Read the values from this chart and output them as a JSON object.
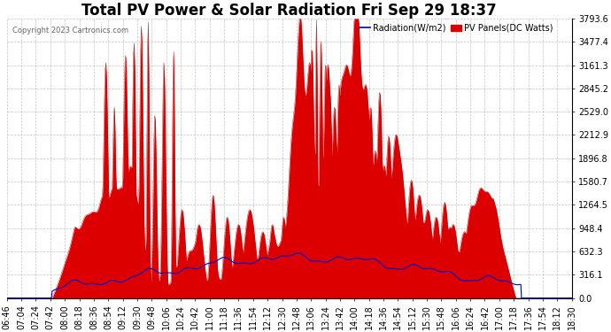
{
  "title": "Total PV Power & Solar Radiation Fri Sep 29 18:37",
  "copyright": "Copyright 2023 Cartronics.com",
  "legend_radiation": "Radiation(W/m2)",
  "legend_pv": "PV Panels(DC Watts)",
  "ylabel_right_ticks": [
    0.0,
    316.1,
    632.3,
    948.4,
    1264.5,
    1580.7,
    1896.8,
    2212.9,
    2529.0,
    2845.2,
    3161.3,
    3477.4,
    3793.6
  ],
  "ymax": 3793.6,
  "ymin": 0.0,
  "background_color": "#ffffff",
  "grid_color": "#aaaaaa",
  "pv_fill_color": "#dd0000",
  "pv_line_color": "#cc0000",
  "radiation_line_color": "#0000cc",
  "title_fontsize": 12,
  "tick_fontsize": 7,
  "x_tick_labels": [
    "06:46",
    "07:04",
    "07:24",
    "07:42",
    "08:00",
    "08:18",
    "08:36",
    "08:54",
    "09:12",
    "09:30",
    "09:48",
    "10:06",
    "10:24",
    "10:42",
    "11:00",
    "11:18",
    "11:36",
    "11:54",
    "12:12",
    "12:30",
    "12:48",
    "13:06",
    "13:24",
    "13:42",
    "14:00",
    "14:18",
    "14:36",
    "14:54",
    "15:12",
    "15:30",
    "15:48",
    "16:06",
    "16:24",
    "16:42",
    "17:00",
    "17:18",
    "17:36",
    "17:54",
    "18:12",
    "18:30"
  ]
}
